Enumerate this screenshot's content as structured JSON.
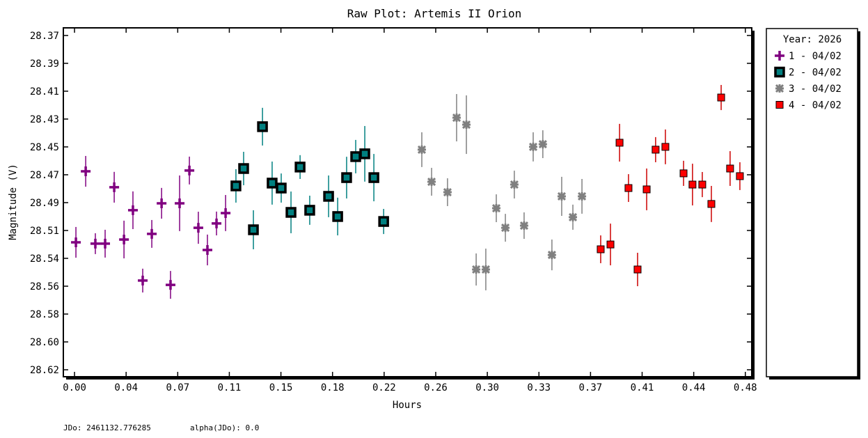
{
  "chart_data": {
    "type": "scatter",
    "title": "Raw Plot: Artemis II Orion",
    "xlabel": "Hours",
    "ylabel": "Magnitude (V)",
    "xlim": [
      -0.008,
      0.4846
    ],
    "ylim": [
      28.3643,
      28.6252
    ],
    "y_inverted": true,
    "grid": false,
    "legend_position": "right-outside",
    "legend_title": "Year: 2026",
    "x_ticks": {
      "values_step": 0.036923,
      "labels": [
        "0.00",
        "0.04",
        "0.07",
        "0.11",
        "0.15",
        "0.18",
        "0.22",
        "0.26",
        "0.30",
        "0.33",
        "0.37",
        "0.41",
        "0.44",
        "0.48"
      ]
    },
    "y_ticks": {
      "values_step": 0.0208333,
      "start": 28.37,
      "labels": [
        "28.37",
        "28.39",
        "28.41",
        "28.43",
        "28.45",
        "28.47",
        "28.49",
        "28.51",
        "28.54",
        "28.56",
        "28.58",
        "28.60",
        "28.62"
      ]
    },
    "series": [
      {
        "name": "1 - 04/02",
        "marker": "plus",
        "color": "#800080",
        "errcolor": "#800080",
        "x": [
          0.001,
          0.008,
          0.0149,
          0.0219,
          0.0284,
          0.0354,
          0.0418,
          0.0488,
          0.0553,
          0.0623,
          0.0687,
          0.0752,
          0.0822,
          0.0886,
          0.0951,
          0.1016,
          0.1081
        ],
        "y": [
          28.5247,
          28.4716,
          28.5257,
          28.5257,
          28.4835,
          28.5226,
          28.5007,
          28.5533,
          28.5184,
          28.4955,
          28.5565,
          28.4955,
          28.471,
          28.5138,
          28.5304,
          28.5106,
          28.5028
        ],
        "err": [
          0.0115,
          0.0115,
          0.0078,
          0.0104,
          0.0115,
          0.0141,
          0.0141,
          0.0089,
          0.0104,
          0.0115,
          0.0104,
          0.0208,
          0.0104,
          0.012,
          0.0115,
          0.0089,
          0.0135
        ]
      },
      {
        "name": "2 - 04/02",
        "marker": "square-outlined",
        "color": "#008080",
        "edge": "#000000",
        "errcolor": "#008080",
        "x": [
          0.1155,
          0.121,
          0.128,
          0.1345,
          0.1414,
          0.1479,
          0.1549,
          0.1614,
          0.1683,
          0.1818,
          0.1883,
          0.1947,
          0.2012,
          0.2077,
          0.2142,
          0.2212
        ],
        "y": [
          28.4825,
          28.4695,
          28.5153,
          28.4382,
          28.4804,
          28.4841,
          28.5023,
          28.4684,
          28.5007,
          28.4903,
          28.5054,
          28.4763,
          28.4606,
          28.4585,
          28.4763,
          28.5091
        ],
        "err": [
          0.0125,
          0.0125,
          0.0146,
          0.0141,
          0.0161,
          0.0109,
          0.0156,
          0.0089,
          0.0109,
          0.0156,
          0.0141,
          0.0156,
          0.0125,
          0.0208,
          0.0177,
          0.0094
        ]
      },
      {
        "name": "3 - 04/02",
        "marker": "asterisk",
        "color": "#808080",
        "errcolor": "#808080",
        "x": [
          0.2485,
          0.2555,
          0.2669,
          0.2734,
          0.2804,
          0.2874,
          0.2943,
          0.3018,
          0.3083,
          0.3147,
          0.3217,
          0.3282,
          0.3351,
          0.3416,
          0.3486,
          0.3566,
          0.3631
        ],
        "y": [
          28.4554,
          28.4794,
          28.4872,
          28.4315,
          28.4367,
          28.545,
          28.545,
          28.4992,
          28.5138,
          28.4815,
          28.5122,
          28.4533,
          28.4513,
          28.5341,
          28.4903,
          28.5059,
          28.4903
        ],
        "err": [
          0.013,
          0.0104,
          0.0104,
          0.0177,
          0.0219,
          0.012,
          0.0156,
          0.0104,
          0.0104,
          0.0104,
          0.0099,
          0.0109,
          0.0104,
          0.0115,
          0.0146,
          0.0094,
          0.013
        ]
      },
      {
        "name": "4 - 04/02",
        "marker": "square",
        "color": "#ff0000",
        "edge": "#000000",
        "errcolor": "#cc0000",
        "x": [
          0.3765,
          0.3835,
          0.39,
          0.3964,
          0.4029,
          0.4094,
          0.4158,
          0.4228,
          0.4358,
          0.4422,
          0.4492,
          0.4557,
          0.4627,
          0.4691,
          0.4761
        ],
        "y": [
          28.5299,
          28.5263,
          28.4502,
          28.4841,
          28.545,
          28.4851,
          28.4554,
          28.4533,
          28.4731,
          28.4815,
          28.4815,
          28.496,
          28.4164,
          28.4695,
          28.4752
        ],
        "err": [
          0.0104,
          0.0156,
          0.0141,
          0.0104,
          0.0125,
          0.0156,
          0.0094,
          0.013,
          0.0094,
          0.0156,
          0.0094,
          0.0135,
          0.0094,
          0.013,
          0.0104
        ]
      }
    ]
  },
  "footer": {
    "jdo": "JDo: 2461132.776285",
    "alpha": "alpha(JDo): 0.0"
  }
}
